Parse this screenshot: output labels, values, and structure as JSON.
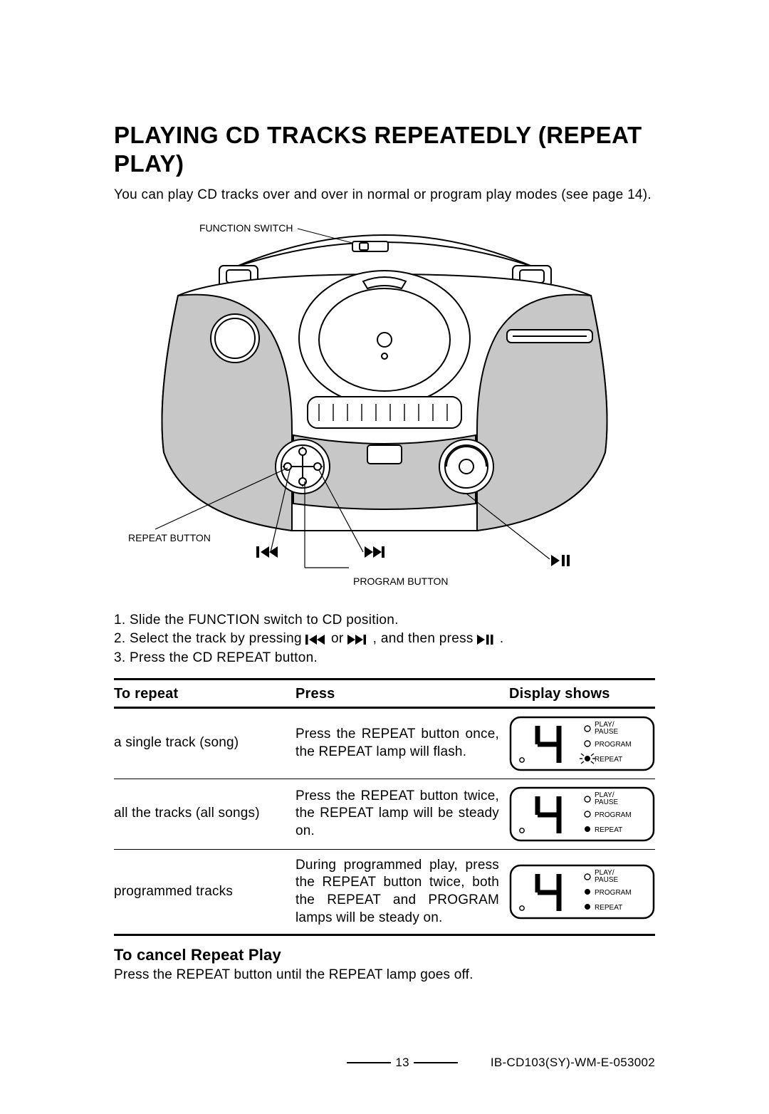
{
  "title": "PLAYING CD TRACKS REPEATEDLY (REPEAT PLAY)",
  "intro": "You can play CD tracks over and over in normal or program play modes (see page 14).",
  "diagram": {
    "labels": {
      "function_switch": "FUNCTION SWITCH",
      "repeat_button": "REPEAT BUTTON",
      "program_button": "PROGRAM BUTTON"
    },
    "icons": {
      "prev": "prev-track-icon",
      "next": "next-track-icon",
      "playpause": "play-pause-icon"
    },
    "colors": {
      "fill_gray": "#c7c7c7",
      "stroke": "#000000",
      "bg": "#ffffff"
    }
  },
  "steps": {
    "s1": "1. Slide the FUNCTION switch to CD position.",
    "s2a": "2. Select the track by pressing ",
    "s2b": " or ",
    "s2c": " , and then press ",
    "s2d": " .",
    "s3": "3. Press the CD REPEAT button."
  },
  "table": {
    "headers": {
      "c1": "To repeat",
      "c2": "Press",
      "c3": "Display shows"
    },
    "rows": [
      {
        "c1": "a single track (song)",
        "c2": "Press the REPEAT button once, the REPEAT lamp will flash.",
        "display": {
          "digit": "4",
          "play_pause": false,
          "program": false,
          "repeat": "flash"
        }
      },
      {
        "c1": "all the tracks (all songs)",
        "c2": "Press the REPEAT button twice, the REPEAT lamp will be steady on.",
        "display": {
          "digit": "4",
          "play_pause": false,
          "program": false,
          "repeat": "on"
        }
      },
      {
        "c1": "programmed tracks",
        "c2": "During programmed play, press the REPEAT button twice, both the REPEAT and PROGRAM lamps will be steady on.",
        "display": {
          "digit": "4",
          "play_pause": false,
          "program": true,
          "repeat": "on"
        }
      }
    ],
    "display_labels": {
      "play_pause": "PLAY/\nPAUSE",
      "program": "PROGRAM",
      "repeat": "REPEAT"
    }
  },
  "cancel": {
    "heading": "To cancel Repeat Play",
    "text": "Press the REPEAT button until the REPEAT lamp goes off."
  },
  "footer": {
    "page": "13",
    "code": "IB-CD103(SY)-WM-E-053002"
  }
}
